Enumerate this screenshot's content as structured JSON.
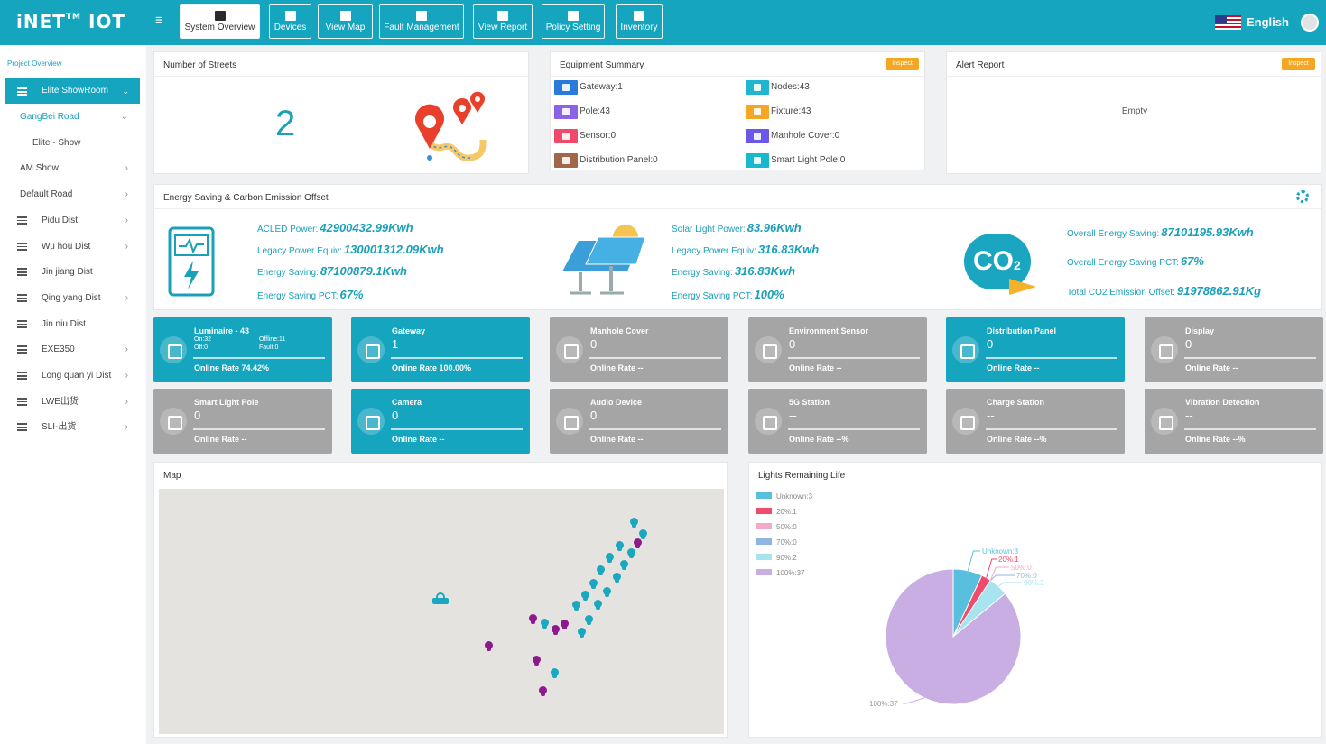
{
  "app": {
    "logo": "iNET",
    "logo_tm": "TM",
    "logo_suffix": "IOT",
    "language": "English"
  },
  "nav": [
    {
      "label": "System Overview",
      "icon": "grid-icon",
      "active": true
    },
    {
      "label": "Devices",
      "icon": "devices-icon"
    },
    {
      "label": "View Map",
      "icon": "globe-icon"
    },
    {
      "label": "Fault Management",
      "icon": "stack-icon"
    },
    {
      "label": "View Report",
      "icon": "report-icon"
    },
    {
      "label": "Policy Setting",
      "icon": "policy-icon"
    },
    {
      "label": "Inventory",
      "icon": "bulb-icon"
    }
  ],
  "sidebar": {
    "project_label": "Project Overview",
    "selected": "Elite ShowRoom",
    "items": [
      {
        "label": "GangBei Road",
        "chev": "⌄",
        "style": "teal"
      },
      {
        "label": "Elite - Show",
        "chev": ""
      },
      {
        "label": "AM Show",
        "chev": "›"
      },
      {
        "label": "Default Road",
        "chev": "›"
      },
      {
        "label": "Pidu Dist",
        "chev": "›",
        "menu": true
      },
      {
        "label": "Wu hou Dist",
        "chev": "›",
        "menu": true
      },
      {
        "label": "Jin jiang Dist",
        "chev": "",
        "menu": true
      },
      {
        "label": "Qing yang Dist",
        "chev": "›",
        "menu": true
      },
      {
        "label": "Jin niu Dist",
        "chev": "",
        "menu": true
      },
      {
        "label": "EXE350",
        "chev": "›",
        "menu": true
      },
      {
        "label": "Long quan yi Dist",
        "chev": "›",
        "menu": true
      },
      {
        "label": "LWE出货",
        "chev": "›",
        "menu": true
      },
      {
        "label": "SLI-出货",
        "chev": "›",
        "menu": true
      }
    ]
  },
  "streets": {
    "title": "Number of Streets",
    "count": "2"
  },
  "equipment": {
    "title": "Equipment Summary",
    "inspect": "Inspect",
    "items": [
      {
        "label": "Gateway:1",
        "color": "#2a7bd8",
        "icon": "gateway-icon"
      },
      {
        "label": "Nodes:43",
        "color": "#22b5cf",
        "icon": "nodes-icon"
      },
      {
        "label": "Pole:43",
        "color": "#8a63e6",
        "icon": "pole-icon"
      },
      {
        "label": "Fixture:43",
        "color": "#f5a623",
        "icon": "fixture-icon"
      },
      {
        "label": "Sensor:0",
        "color": "#ef4a6a",
        "icon": "sensor-icon"
      },
      {
        "label": "Manhole Cover:0",
        "color": "#6b57e8",
        "icon": "manhole-icon"
      },
      {
        "label": "Distribution Panel:0",
        "color": "#a0674a",
        "icon": "panel-icon"
      },
      {
        "label": "Smart Light Pole:0",
        "color": "#19b8d0",
        "icon": "smart-pole-icon"
      }
    ]
  },
  "alert": {
    "title": "Alert Report",
    "inspect": "Inspect",
    "empty": "Empty"
  },
  "energy": {
    "title": "Energy Saving & Carbon Emission Offset",
    "led": [
      {
        "label": "ACLED Power:",
        "value": "42900432.99Kwh"
      },
      {
        "label": "Legacy Power Equiv:",
        "value": "130001312.09Kwh"
      },
      {
        "label": "Energy Saving:",
        "value": "87100879.1Kwh"
      },
      {
        "label": "Energy Saving PCT:",
        "value": "67%"
      }
    ],
    "solar": [
      {
        "label": "Solar Light Power:",
        "value": "83.96Kwh"
      },
      {
        "label": "Legacy Power Equiv:",
        "value": "316.83Kwh"
      },
      {
        "label": "Energy Saving:",
        "value": "316.83Kwh"
      },
      {
        "label": "Energy Saving PCT:",
        "value": "100%"
      }
    ],
    "overall": [
      {
        "label": "Overall Energy Saving:",
        "value": "87101195.93Kwh"
      },
      {
        "label": "Overall Energy Saving PCT:",
        "value": "67%"
      },
      {
        "label": "Total CO2 Emission Offset:",
        "value": "91978862.91Kg"
      }
    ],
    "co2_label": "CO",
    "co2_sub": "2"
  },
  "tiles": [
    {
      "name": "Luminaire - 43",
      "value": "",
      "rate": "Online Rate 74.42%",
      "on": true,
      "icon": "luminaire-icon",
      "stats": [
        "On:32",
        "Offline:11",
        "Off:0",
        "Fault:0"
      ]
    },
    {
      "name": "Gateway",
      "value": "1",
      "rate": "Online Rate 100.00%",
      "on": true,
      "icon": "router-icon"
    },
    {
      "name": "Manhole Cover",
      "value": "0",
      "rate": "Online Rate --",
      "on": false,
      "icon": "manhole-cover-icon"
    },
    {
      "name": "Environment Sensor",
      "value": "0",
      "rate": "Online Rate --",
      "on": false,
      "icon": "sensor-wave-icon"
    },
    {
      "name": "Distribution Panel",
      "value": "0",
      "rate": "Online Rate --",
      "on": true,
      "icon": "distribution-panel-icon"
    },
    {
      "name": "Display",
      "value": "0",
      "rate": "Online Rate --",
      "on": false,
      "icon": "led-display-icon"
    },
    {
      "name": "Smart Light Pole",
      "value": "0",
      "rate": "Online Rate --",
      "on": false,
      "icon": "smart-light-pole-icon"
    },
    {
      "name": "Camera",
      "value": "0",
      "rate": "Online Rate --",
      "on": true,
      "icon": "camera-icon"
    },
    {
      "name": "Audio Device",
      "value": "0",
      "rate": "Online Rate --",
      "on": false,
      "icon": "speaker-icon"
    },
    {
      "name": "5G Station",
      "value": "--",
      "rate": "Online Rate --%",
      "on": false,
      "icon": "5g-icon"
    },
    {
      "name": "Charge Station",
      "value": "--",
      "rate": "Online Rate --%",
      "on": false,
      "icon": "charge-station-icon"
    },
    {
      "name": "Vibration Detection",
      "value": "--",
      "rate": "Online Rate --%",
      "on": false,
      "icon": "vibration-icon"
    }
  ],
  "map": {
    "title": "Map",
    "pins": [
      "#1aa8c0",
      "#8d1a8c"
    ]
  },
  "remaining": {
    "title": "Lights Remaining Life"
  },
  "chart_data": {
    "type": "pie",
    "title": "Lights Remaining Life",
    "categories": [
      "Unknown",
      "20%",
      "50%",
      "70%",
      "90%",
      "100%"
    ],
    "values": [
      3,
      1,
      0,
      0,
      2,
      37
    ],
    "colors": [
      "#59bfdf",
      "#f04a6c",
      "#f5a9c9",
      "#8fb6e3",
      "#a8e3f0",
      "#c9aee3"
    ],
    "legend": [
      "Unknown:3",
      "20%:1",
      "50%:0",
      "70%:0",
      "90%:2",
      "100%:37"
    ],
    "legend_position": "top-left"
  }
}
